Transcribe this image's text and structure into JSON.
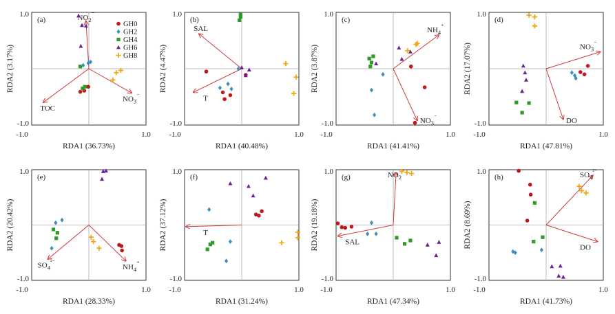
{
  "colors": {
    "GH0": "#c0171d",
    "GH2": "#3c8fc0",
    "GH4": "#2e9a27",
    "GH6": "#6a2396",
    "GH8": "#f3a712",
    "vector": "#d0393d",
    "frame": "#333333",
    "refline": "#aaaaaa"
  },
  "legend": [
    "GH0",
    "GH2",
    "GH4",
    "GH6",
    "GH8"
  ],
  "markers": {
    "GH0": "circle",
    "GH2": "diamond",
    "GH4": "square",
    "GH6": "triangle",
    "GH8": "star"
  },
  "ticks": {
    "neg": "-1.0",
    "pos": "1.0"
  },
  "chart_data": [
    {
      "type": "scatter",
      "panel": "(a)",
      "xlabel": "RDA1 (36.73%)",
      "ylabel": "RDA2 (3.17%)",
      "xlim": [
        -1,
        1
      ],
      "ylim": [
        -1,
        1
      ],
      "vectors": [
        {
          "name": "NO2⁻",
          "x": -0.05,
          "y": 0.85
        },
        {
          "name": "NO3⁻",
          "x": 0.75,
          "y": -0.43
        },
        {
          "name": "TOC",
          "x": -0.8,
          "y": -0.6
        }
      ],
      "series": [
        {
          "name": "GH0",
          "points": [
            [
              -0.15,
              -0.41
            ],
            [
              -0.08,
              -0.39
            ],
            [
              -0.01,
              -0.32
            ]
          ]
        },
        {
          "name": "GH2",
          "points": [
            [
              -0.1,
              0.06
            ],
            [
              -0.01,
              0.1
            ],
            [
              0.03,
              0.12
            ]
          ]
        },
        {
          "name": "GH4",
          "points": [
            [
              -0.15,
              0.04
            ],
            [
              -0.11,
              -0.35
            ],
            [
              -0.07,
              -0.32
            ]
          ]
        },
        {
          "name": "GH6",
          "points": [
            [
              -0.18,
              0.94
            ],
            [
              -0.12,
              0.77
            ],
            [
              -0.05,
              0.76
            ],
            [
              -0.14,
              0.4
            ]
          ]
        },
        {
          "name": "GH8",
          "points": [
            [
              0.48,
              -0.07
            ],
            [
              0.56,
              -0.03
            ],
            [
              0.42,
              -0.2
            ]
          ]
        }
      ]
    },
    {
      "type": "scatter",
      "panel": "(b)",
      "xlabel": "RDA1 (40.48%)",
      "ylabel": "RDA2 (4.47%)",
      "xlim": [
        -1,
        1
      ],
      "ylim": [
        -1,
        1
      ],
      "vectors": [
        {
          "name": "SAL",
          "x": -0.75,
          "y": 0.62
        },
        {
          "name": "T",
          "x": -0.85,
          "y": -0.42
        }
      ],
      "series": [
        {
          "name": "GH0",
          "points": [
            [
              -0.62,
              -0.05
            ],
            [
              -0.33,
              -0.42
            ],
            [
              -0.3,
              -0.54
            ],
            [
              -0.2,
              -0.47
            ],
            [
              0.07,
              -0.11
            ]
          ]
        },
        {
          "name": "GH2",
          "points": [
            [
              -0.38,
              -0.34
            ],
            [
              -0.24,
              -0.27
            ],
            [
              -0.18,
              -0.36
            ],
            [
              -0.06,
              0.0
            ]
          ]
        },
        {
          "name": "GH4",
          "points": [
            [
              -0.04,
              0.86
            ],
            [
              -0.02,
              0.96
            ],
            [
              -0.02,
              0.92
            ]
          ]
        },
        {
          "name": "GH6",
          "points": [
            [
              0.0,
              0.02
            ],
            [
              0.07,
              -0.12
            ],
            [
              0.13,
              -0.02
            ]
          ]
        },
        {
          "name": "GH8",
          "points": [
            [
              0.77,
              0.09
            ],
            [
              0.95,
              -0.15
            ],
            [
              0.91,
              -0.44
            ]
          ]
        }
      ]
    },
    {
      "type": "scatter",
      "panel": "(c)",
      "xlabel": "RDA1 (41.41%)",
      "ylabel": "RDA2 (3.87%)",
      "xlim": [
        -1,
        1
      ],
      "ylim": [
        -1,
        1
      ],
      "vectors": [
        {
          "name": "NH4⁺",
          "x": 0.8,
          "y": 0.6
        },
        {
          "name": "NO3⁻",
          "x": 0.42,
          "y": -0.92
        }
      ],
      "series": [
        {
          "name": "GH0",
          "points": [
            [
              0.55,
              -0.33
            ],
            [
              0.38,
              -0.96
            ],
            [
              0.31,
              0.04
            ]
          ]
        },
        {
          "name": "GH2",
          "points": [
            [
              -0.38,
              -0.38
            ],
            [
              -0.33,
              -0.82
            ],
            [
              -0.18,
              -0.1
            ]
          ]
        },
        {
          "name": "GH4",
          "points": [
            [
              -0.4,
              0.04
            ],
            [
              -0.38,
              0.11
            ],
            [
              -0.35,
              0.22
            ],
            [
              -0.42,
              0.18
            ]
          ]
        },
        {
          "name": "GH6",
          "points": [
            [
              -0.3,
              0.09
            ],
            [
              0.1,
              0.37
            ],
            [
              0.15,
              0.17
            ],
            [
              0.3,
              0.3
            ]
          ]
        },
        {
          "name": "GH8",
          "points": [
            [
              0.25,
              0.32
            ],
            [
              0.4,
              0.43
            ],
            [
              0.42,
              0.45
            ]
          ]
        }
      ]
    },
    {
      "type": "scatter",
      "panel": "(d)",
      "xlabel": "RDA1 (47.81%)",
      "ylabel": "RDA2 (17.07%)",
      "xlim": [
        -1,
        1
      ],
      "ylim": [
        -1,
        1
      ],
      "vectors": [
        {
          "name": "NO3⁻",
          "x": 0.95,
          "y": 0.3
        },
        {
          "name": "DO",
          "x": 0.3,
          "y": -0.9
        }
      ],
      "series": [
        {
          "name": "GH0",
          "points": [
            [
              0.6,
              -0.06
            ],
            [
              0.67,
              -0.1
            ],
            [
              0.73,
              0.05
            ]
          ]
        },
        {
          "name": "GH2",
          "points": [
            [
              0.5,
              -0.12
            ],
            [
              0.52,
              -0.17
            ],
            [
              0.45,
              -0.07
            ]
          ]
        },
        {
          "name": "GH4",
          "points": [
            [
              -0.52,
              -0.6
            ],
            [
              -0.42,
              -0.78
            ],
            [
              -0.3,
              -0.61
            ]
          ]
        },
        {
          "name": "GH6",
          "points": [
            [
              -0.4,
              0.05
            ],
            [
              -0.37,
              -0.07
            ],
            [
              -0.35,
              -0.2
            ],
            [
              -0.42,
              -0.4
            ]
          ]
        },
        {
          "name": "GH8",
          "points": [
            [
              -0.3,
              0.95
            ],
            [
              -0.2,
              0.92
            ],
            [
              -0.2,
              0.76
            ]
          ]
        }
      ]
    },
    {
      "type": "scatter",
      "panel": "(e)",
      "xlabel": "RDA1 (28.33%)",
      "ylabel": "RDA2 (20.42%)",
      "xlim": [
        -1,
        1
      ],
      "ylim": [
        -1,
        1
      ],
      "vectors": [
        {
          "name": "SO4²⁻",
          "x": -0.72,
          "y": -0.62
        },
        {
          "name": "NH4⁺",
          "x": 0.65,
          "y": -0.65
        }
      ],
      "series": [
        {
          "name": "GH0",
          "points": [
            [
              0.53,
              -0.36
            ],
            [
              0.57,
              -0.38
            ],
            [
              0.58,
              -0.46
            ]
          ]
        },
        {
          "name": "GH2",
          "points": [
            [
              -0.58,
              0.04
            ],
            [
              -0.47,
              0.09
            ],
            [
              -0.65,
              -0.42
            ]
          ]
        },
        {
          "name": "GH4",
          "points": [
            [
              -0.55,
              -0.14
            ],
            [
              -0.62,
              -0.08
            ],
            [
              -0.57,
              -0.24
            ]
          ]
        },
        {
          "name": "GH6",
          "points": [
            [
              0.25,
              0.97
            ],
            [
              0.3,
              0.98
            ],
            [
              0.23,
              0.83
            ]
          ]
        },
        {
          "name": "GH8",
          "points": [
            [
              0.04,
              -0.22
            ],
            [
              0.08,
              -0.3
            ],
            [
              0.18,
              -0.42
            ]
          ]
        }
      ]
    },
    {
      "type": "scatter",
      "panel": "(f)",
      "xlabel": "RDA1 (31.24%)",
      "ylabel": "RDA2 (37.12%)",
      "xlim": [
        -1,
        1
      ],
      "ylim": [
        -1,
        1
      ],
      "vectors": [
        {
          "name": "T",
          "x": -0.98,
          "y": -0.03
        }
      ],
      "series": [
        {
          "name": "GH0",
          "points": [
            [
              0.25,
              0.19
            ],
            [
              0.3,
              0.17
            ],
            [
              0.35,
              0.25
            ]
          ]
        },
        {
          "name": "GH2",
          "points": [
            [
              -0.57,
              0.28
            ],
            [
              -0.27,
              -0.65
            ],
            [
              -0.2,
              -0.3
            ]
          ]
        },
        {
          "name": "GH4",
          "points": [
            [
              -0.6,
              -0.44
            ],
            [
              -0.55,
              -0.35
            ],
            [
              -0.51,
              -0.32
            ]
          ]
        },
        {
          "name": "GH6",
          "points": [
            [
              -0.2,
              0.75
            ],
            [
              0.12,
              0.7
            ],
            [
              0.42,
              0.85
            ],
            [
              0.2,
              0.53
            ]
          ]
        },
        {
          "name": "GH8",
          "points": [
            [
              0.7,
              -0.32
            ],
            [
              0.98,
              -0.13
            ],
            [
              0.98,
              -0.23
            ]
          ]
        }
      ]
    },
    {
      "type": "scatter",
      "panel": "(g)",
      "xlabel": "RDA1 (47.34%)",
      "ylabel": "RDA2 (19.18%)",
      "xlim": [
        -1,
        1
      ],
      "ylim": [
        -1,
        1
      ],
      "vectors": [
        {
          "name": "SAL",
          "x": -0.97,
          "y": -0.2
        },
        {
          "name": "NO2⁻",
          "x": 0.05,
          "y": 0.95
        }
      ],
      "series": [
        {
          "name": "GH0",
          "points": [
            [
              -0.97,
              0.03
            ],
            [
              -0.84,
              -0.05
            ],
            [
              -0.73,
              -0.03
            ],
            [
              -0.9,
              -0.04
            ]
          ]
        },
        {
          "name": "GH2",
          "points": [
            [
              -0.45,
              -0.16
            ],
            [
              -0.38,
              0.04
            ],
            [
              -0.3,
              -0.16
            ]
          ]
        },
        {
          "name": "GH4",
          "points": [
            [
              0.06,
              -0.23
            ],
            [
              0.2,
              -0.34
            ],
            [
              0.3,
              -0.28
            ]
          ]
        },
        {
          "name": "GH6",
          "points": [
            [
              0.6,
              -0.36
            ],
            [
              0.8,
              -0.31
            ],
            [
              0.75,
              -0.55
            ]
          ]
        },
        {
          "name": "GH8",
          "points": [
            [
              0.15,
              0.97
            ],
            [
              0.24,
              0.95
            ],
            [
              0.32,
              0.93
            ]
          ]
        }
      ]
    },
    {
      "type": "scatter",
      "panel": "(h)",
      "xlabel": "RDA1 (41.73%)",
      "ylabel": "RDA2 (8.69%)",
      "xlim": [
        -1,
        1
      ],
      "ylim": [
        -1,
        1
      ],
      "vectors": [
        {
          "name": "SO4²⁻",
          "x": 0.82,
          "y": 0.9
        },
        {
          "name": "DO",
          "x": 0.9,
          "y": -0.3
        }
      ],
      "series": [
        {
          "name": "GH0",
          "points": [
            [
              -0.48,
              0.98
            ],
            [
              -0.28,
              0.73
            ],
            [
              -0.33,
              0.08
            ],
            [
              -0.27,
              0.55
            ]
          ]
        },
        {
          "name": "GH2",
          "points": [
            [
              -0.58,
              -0.48
            ],
            [
              -0.54,
              -0.5
            ],
            [
              -0.08,
              -0.45
            ]
          ]
        },
        {
          "name": "GH4",
          "points": [
            [
              -0.2,
              0.4
            ],
            [
              -0.22,
              -0.3
            ],
            [
              -0.06,
              -0.22
            ]
          ]
        },
        {
          "name": "GH6",
          "points": [
            [
              0.1,
              -0.75
            ],
            [
              0.25,
              -0.74
            ],
            [
              0.3,
              -0.94
            ],
            [
              0.22,
              -0.92
            ]
          ]
        },
        {
          "name": "GH8",
          "points": [
            [
              0.58,
              0.7
            ],
            [
              0.62,
              0.62
            ],
            [
              0.7,
              0.58
            ]
          ]
        }
      ]
    }
  ]
}
